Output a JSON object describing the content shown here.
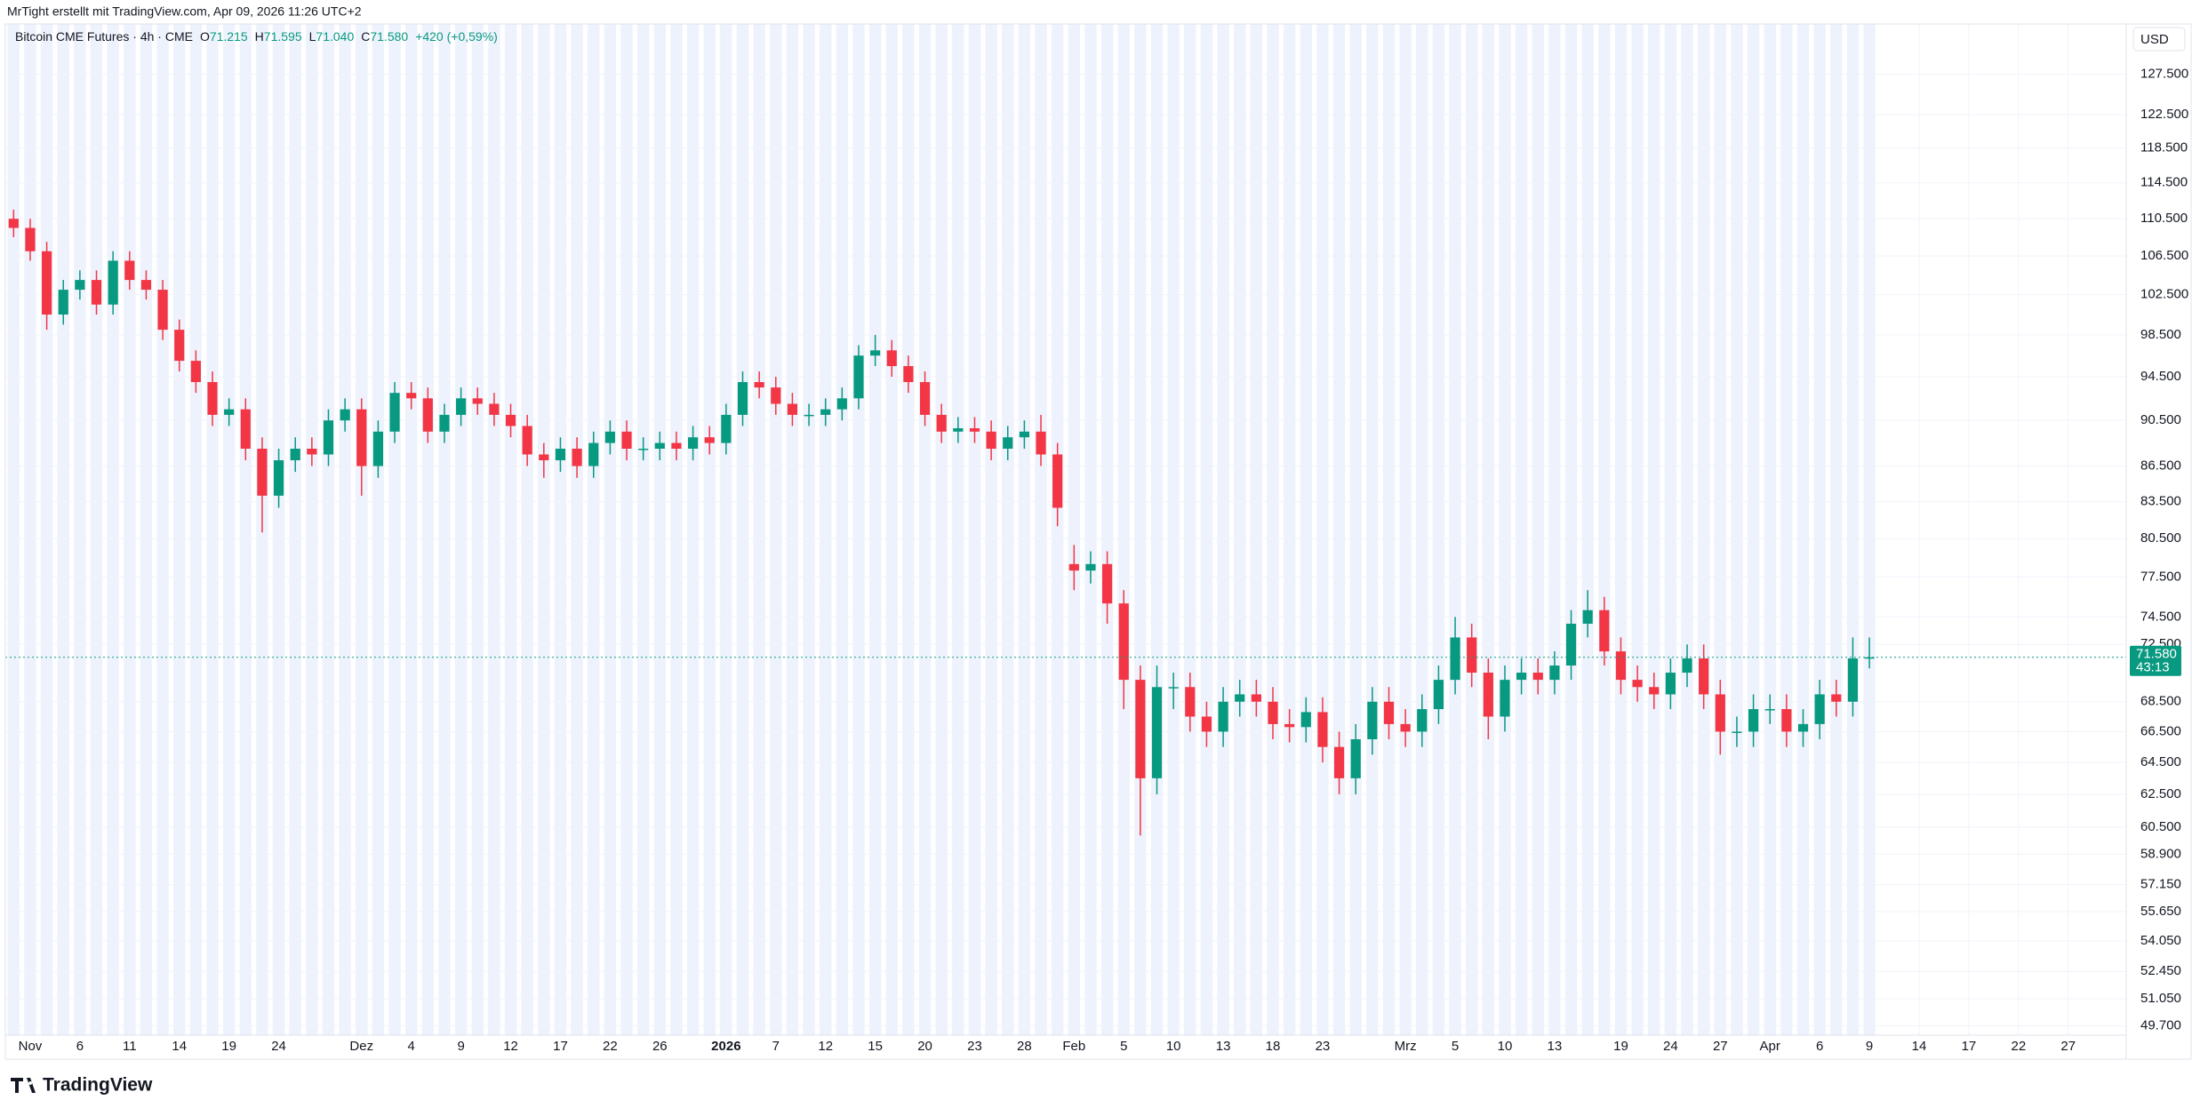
{
  "chart_data": {
    "type": "candlestick",
    "watermark": "MrTight erstellt mit TradingView.com, Apr 09, 2026 11:26 UTC+2",
    "brand": "TradingView",
    "currency": "USD",
    "ohlc_legend": {
      "symbol": "Bitcoin CME Futures · 4h · CME",
      "fields": [
        {
          "key": "O",
          "value": "71.215"
        },
        {
          "key": "H",
          "value": "71.595"
        },
        {
          "key": "L",
          "value": "71.040"
        },
        {
          "key": "C",
          "value": "71.580"
        }
      ],
      "change": "+420 (+0,59%)"
    },
    "last_price": {
      "value": 71580,
      "label": "71.580"
    },
    "countdown": "43:13",
    "up_color": "#089981",
    "down_color": "#f23645",
    "log_scale": true,
    "grid": true,
    "categories": [
      null,
      "Nov",
      null,
      null,
      "6",
      null,
      null,
      "11",
      null,
      null,
      "14",
      null,
      null,
      "19",
      null,
      null,
      "24",
      null,
      null,
      null,
      null,
      "Dez",
      null,
      null,
      "4",
      null,
      null,
      "9",
      null,
      null,
      "12",
      null,
      null,
      "17",
      null,
      null,
      "22",
      null,
      null,
      "26",
      null,
      null,
      null,
      "2026",
      null,
      null,
      "7",
      null,
      null,
      "12",
      null,
      null,
      "15",
      null,
      null,
      "20",
      null,
      null,
      "23",
      null,
      null,
      "28",
      null,
      null,
      "Feb",
      null,
      null,
      "5",
      null,
      null,
      "10",
      null,
      null,
      "13",
      null,
      null,
      "18",
      null,
      null,
      "23",
      null,
      null,
      null,
      null,
      "Mrz",
      null,
      null,
      "5",
      null,
      null,
      "10",
      null,
      null,
      "13",
      null,
      null,
      null,
      "19",
      null,
      null,
      "24",
      null,
      null,
      "27",
      null,
      null,
      "Apr",
      null,
      null,
      "6",
      null,
      null,
      "9",
      null,
      null,
      "14",
      null,
      null,
      "17",
      null,
      null,
      "22",
      null,
      null,
      "27",
      null,
      null,
      null
    ],
    "open": [
      110500,
      109500,
      107000,
      100500,
      103000,
      104000,
      101500,
      106000,
      104000,
      103000,
      99000,
      96000,
      94000,
      91000,
      91500,
      88000,
      84000,
      87000,
      88000,
      87500,
      90500,
      91500,
      86500,
      89500,
      93000,
      92500,
      89500,
      91000,
      92500,
      92000,
      91000,
      90000,
      87500,
      87000,
      88000,
      86500,
      88500,
      89500,
      88000,
      88000,
      88500,
      88000,
      89000,
      88500,
      91000,
      94000,
      93500,
      92000,
      91000,
      91000,
      91500,
      92500,
      96500,
      97000,
      95500,
      94000,
      91000,
      89500,
      89800,
      89500,
      88000,
      89000,
      89500,
      87500,
      78500,
      78000,
      78500,
      75500,
      70000,
      63500,
      69500,
      69500,
      67500,
      66500,
      68500,
      69000,
      68500,
      67000,
      66800,
      67800,
      65500,
      63500,
      66000,
      68500,
      67000,
      66500,
      68000,
      70000,
      73000,
      70500,
      67500,
      70000,
      70500,
      70000,
      71000,
      74000,
      75000,
      72000,
      70000,
      69500,
      69000,
      70500,
      71500,
      69000,
      66500,
      66500,
      68000,
      68000,
      66500,
      67000,
      69000,
      68500,
      71500,
      null,
      null,
      null,
      null,
      null,
      null,
      null,
      null,
      null,
      null,
      null,
      null,
      null,
      null,
      null
    ],
    "high": [
      111500,
      110500,
      108000,
      104000,
      105000,
      105000,
      107000,
      107000,
      105000,
      104000,
      100000,
      97000,
      95000,
      92500,
      92500,
      89000,
      88000,
      89000,
      89000,
      91500,
      92500,
      92500,
      90500,
      94000,
      94000,
      93500,
      92000,
      93500,
      93500,
      93000,
      92000,
      91000,
      88500,
      89000,
      89000,
      89500,
      90500,
      90500,
      89000,
      89500,
      89500,
      90000,
      90000,
      92000,
      95000,
      95000,
      94500,
      93000,
      92000,
      92500,
      93500,
      97500,
      98500,
      98000,
      96500,
      95000,
      92000,
      90800,
      90800,
      90500,
      90000,
      90500,
      91000,
      88500,
      80000,
      79500,
      79500,
      76500,
      71000,
      71000,
      70500,
      70500,
      68500,
      69500,
      70000,
      70000,
      69500,
      68000,
      68800,
      68800,
      66500,
      67000,
      69500,
      69500,
      68000,
      69000,
      71000,
      74500,
      74000,
      71500,
      71000,
      71500,
      71500,
      72000,
      75000,
      76500,
      76000,
      73000,
      71000,
      70500,
      71500,
      72500,
      72500,
      70000,
      67500,
      69000,
      69000,
      69000,
      68000,
      70000,
      70000,
      73000,
      73000,
      null,
      null,
      null,
      null,
      null,
      null,
      null,
      null,
      null,
      null,
      null,
      null,
      null,
      null,
      null
    ],
    "low": [
      108500,
      106000,
      99000,
      99500,
      102000,
      100500,
      100500,
      103000,
      102000,
      98000,
      95000,
      93000,
      90000,
      90000,
      87000,
      81000,
      83000,
      86000,
      86500,
      86500,
      89500,
      84000,
      85500,
      88500,
      91500,
      88500,
      88500,
      90000,
      91000,
      90000,
      89000,
      86500,
      85500,
      86000,
      85500,
      85500,
      87500,
      87000,
      87000,
      87000,
      87000,
      87000,
      87500,
      87500,
      90000,
      92500,
      91000,
      90000,
      90000,
      90000,
      90500,
      91500,
      95500,
      94500,
      93000,
      90000,
      88500,
      88500,
      88500,
      87000,
      87000,
      88000,
      86500,
      81500,
      76500,
      77000,
      74000,
      68000,
      60000,
      62500,
      68000,
      66500,
      65500,
      65500,
      67500,
      67500,
      66000,
      65800,
      65800,
      64500,
      62500,
      62500,
      65000,
      66000,
      65500,
      65500,
      67000,
      69000,
      69500,
      66000,
      66500,
      69000,
      69000,
      69000,
      70000,
      73000,
      71000,
      69000,
      68500,
      68000,
      68000,
      69500,
      68000,
      65000,
      65500,
      65500,
      67000,
      65500,
      65500,
      66000,
      67500,
      67500,
      70800,
      null,
      null,
      null,
      null,
      null,
      null,
      null,
      null,
      null,
      null,
      null,
      null,
      null,
      null,
      null
    ],
    "close": [
      109500,
      107000,
      100500,
      103000,
      104000,
      101500,
      106000,
      104000,
      103000,
      99000,
      96000,
      94000,
      91000,
      91500,
      88000,
      84000,
      87000,
      88000,
      87500,
      90500,
      91500,
      86500,
      89500,
      93000,
      92500,
      89500,
      91000,
      92500,
      92000,
      91000,
      90000,
      87500,
      87000,
      88000,
      86500,
      88500,
      89500,
      88000,
      88000,
      88500,
      88000,
      89000,
      88500,
      91000,
      94000,
      93500,
      92000,
      91000,
      91000,
      91500,
      92500,
      96500,
      97000,
      95500,
      94000,
      91000,
      89500,
      89800,
      89500,
      88000,
      89000,
      89500,
      87500,
      83000,
      78000,
      78500,
      75500,
      70000,
      63500,
      69500,
      69500,
      67500,
      66500,
      68500,
      69000,
      68500,
      67000,
      66800,
      67800,
      65500,
      63500,
      66000,
      68500,
      67000,
      66500,
      68000,
      70000,
      73000,
      70500,
      67500,
      70000,
      70500,
      70000,
      71000,
      74000,
      75000,
      72000,
      70000,
      69500,
      69000,
      70500,
      71500,
      69000,
      66500,
      66500,
      68000,
      68000,
      66500,
      67000,
      69000,
      68500,
      71500,
      71580,
      null,
      null,
      null,
      null,
      null,
      null,
      null,
      null,
      null,
      null,
      null,
      null,
      null,
      null,
      null
    ],
    "ylim": [
      49240,
      134000
    ],
    "yticks": [
      {
        "value": 127500,
        "label": "127.500"
      },
      {
        "value": 122500,
        "label": "122.500"
      },
      {
        "value": 118500,
        "label": "118.500"
      },
      {
        "value": 114500,
        "label": "114.500"
      },
      {
        "value": 110500,
        "label": "110.500"
      },
      {
        "value": 106500,
        "label": "106.500"
      },
      {
        "value": 102500,
        "label": "102.500"
      },
      {
        "value": 98500,
        "label": "98.500"
      },
      {
        "value": 94500,
        "label": "94.500"
      },
      {
        "value": 90500,
        "label": "90.500"
      },
      {
        "value": 86500,
        "label": "86.500"
      },
      {
        "value": 83500,
        "label": "83.500"
      },
      {
        "value": 80500,
        "label": "80.500"
      },
      {
        "value": 77500,
        "label": "77.500"
      },
      {
        "value": 74500,
        "label": "74.500"
      },
      {
        "value": 72500,
        "label": "72.500"
      },
      {
        "value": 68500,
        "label": "68.500"
      },
      {
        "value": 66500,
        "label": "66.500"
      },
      {
        "value": 64500,
        "label": "64.500"
      },
      {
        "value": 62500,
        "label": "62.500"
      },
      {
        "value": 60500,
        "label": "60.500"
      },
      {
        "value": 58900,
        "label": "58.900"
      },
      {
        "value": 57150,
        "label": "57.150"
      },
      {
        "value": 55650,
        "label": "55.650"
      },
      {
        "value": 54050,
        "label": "54.050"
      },
      {
        "value": 52450,
        "label": "52.450"
      },
      {
        "value": 51050,
        "label": "51.050"
      },
      {
        "value": 49700,
        "label": "49.700"
      }
    ]
  }
}
